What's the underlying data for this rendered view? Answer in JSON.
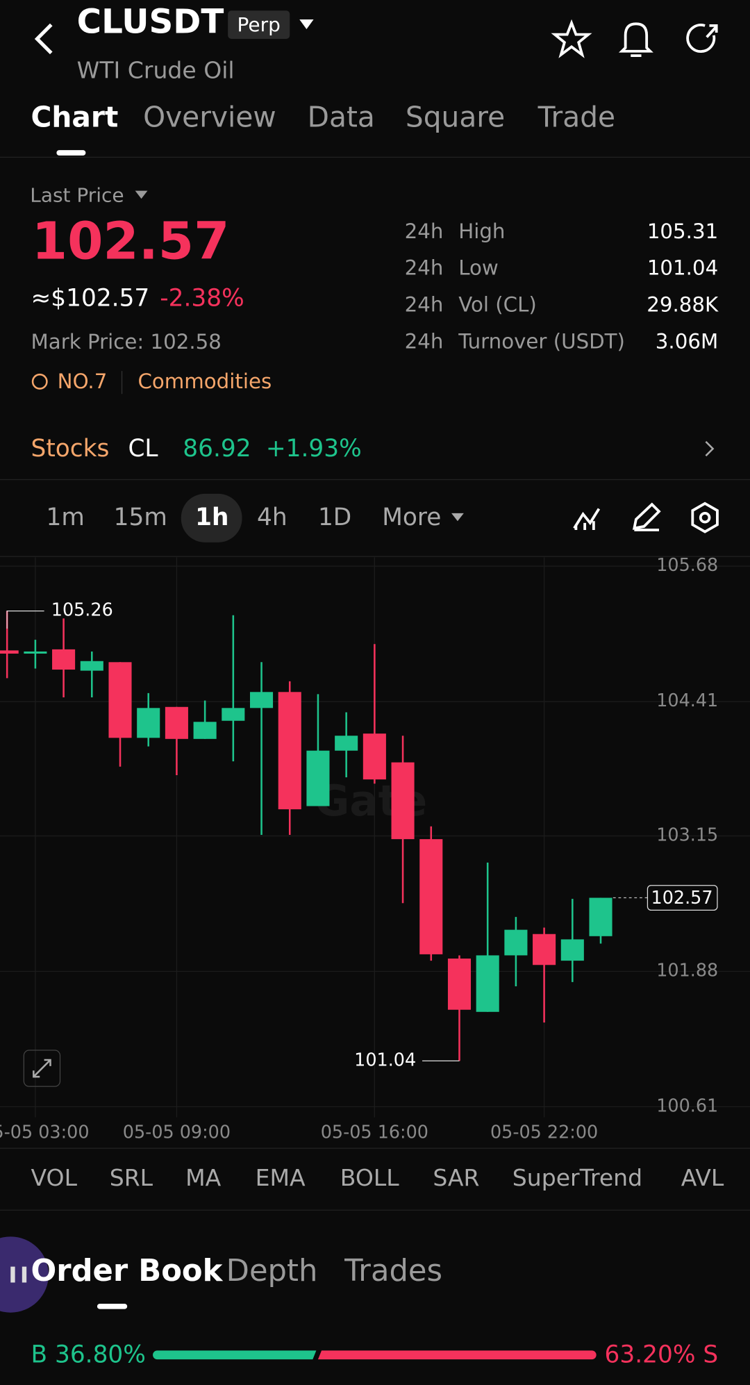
{
  "header": {
    "symbol": "CLUSDT",
    "badge": "Perp",
    "name": "WTI Crude Oil"
  },
  "tabs": [
    "Chart",
    "Overview",
    "Data",
    "Square",
    "Trade"
  ],
  "price": {
    "label": "Last Price",
    "last": "102.57",
    "usd": "≈$102.57",
    "change": "-2.38%",
    "mark": "Mark Price: 102.58",
    "rank": "NO.7",
    "sector": "Commodities"
  },
  "stats": [
    {
      "period": "24h",
      "label": "High",
      "value": "105.31"
    },
    {
      "period": "24h",
      "label": "Low",
      "value": "101.04"
    },
    {
      "period": "24h",
      "label": "Vol (CL)",
      "value": "29.88K"
    },
    {
      "period": "24h",
      "label": "Turnover (USDT)",
      "value": "3.06M"
    }
  ],
  "stocks": {
    "label": "Stocks",
    "ticker": "CL",
    "price": "86.92",
    "change": "+1.93%"
  },
  "intervals": [
    "1m",
    "15m",
    "1h",
    "4h",
    "1D",
    "More"
  ],
  "chart_data": {
    "type": "candlestick",
    "watermark": "Gate",
    "categories": [
      null,
      "05-05 03:00",
      null,
      null,
      null,
      null,
      "05-05 09:00",
      null,
      null,
      null,
      null,
      null,
      null,
      "05-05 16:00",
      null,
      null,
      null,
      null,
      null,
      "05-05 22:00",
      null,
      null
    ],
    "open": [
      104.89,
      104.86,
      104.9,
      104.7,
      104.78,
      104.07,
      104.36,
      104.06,
      104.23,
      104.35,
      104.5,
      103.43,
      103.95,
      104.11,
      103.84,
      103.12,
      102.0,
      101.5,
      102.03,
      102.23,
      101.98,
      102.21
    ],
    "high": [
      105.26,
      104.99,
      105.19,
      104.88,
      104.78,
      104.49,
      104.36,
      104.42,
      105.22,
      104.78,
      104.6,
      104.48,
      104.31,
      104.95,
      104.09,
      103.24,
      102.03,
      102.9,
      102.39,
      102.29,
      102.56,
      102.57
    ],
    "low": [
      104.63,
      104.72,
      104.45,
      104.45,
      103.8,
      103.99,
      103.72,
      104.06,
      103.85,
      103.16,
      103.16,
      103.43,
      103.7,
      103.64,
      102.52,
      101.98,
      101.04,
      101.5,
      101.74,
      101.4,
      101.78,
      102.14
    ],
    "close": [
      104.86,
      104.88,
      104.71,
      104.79,
      104.07,
      104.35,
      104.06,
      104.22,
      104.35,
      104.5,
      103.4,
      103.95,
      104.09,
      103.68,
      103.12,
      102.04,
      101.52,
      102.03,
      102.27,
      101.94,
      102.18,
      102.57
    ],
    "up_color": "#1ec48c",
    "down_color": "#f5325c",
    "ylim": [
      100.61,
      105.68
    ],
    "yticks": [
      100.61,
      101.88,
      103.15,
      104.41,
      105.68
    ],
    "grid": true
  },
  "indicators": [
    "VOL",
    "SRL",
    "MA",
    "EMA",
    "BOLL",
    "SAR",
    "SuperTrend",
    "AVL"
  ],
  "book_tabs": [
    "Order Book",
    "Depth",
    "Trades"
  ],
  "ratio": {
    "buy_label": "B 36.80%",
    "sell_label": "63.20% S",
    "buy": 36.8,
    "sell": 63.2
  }
}
